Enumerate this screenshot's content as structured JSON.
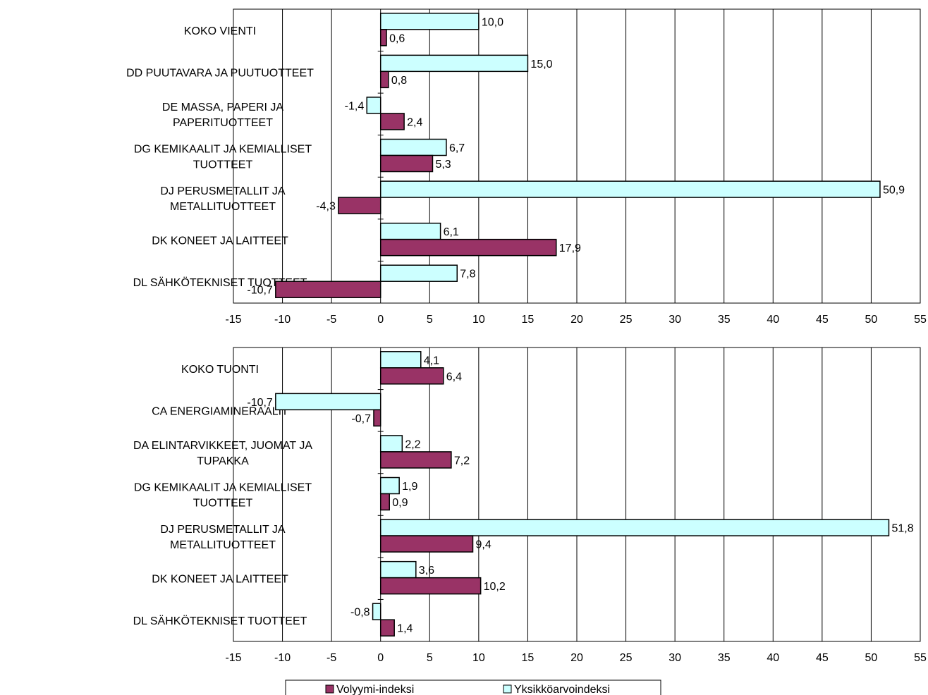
{
  "colors": {
    "volume": "#993366",
    "unit_value": "#ccffff",
    "stroke": "#000000",
    "grid": "#000000",
    "background": "#ffffff"
  },
  "legend": {
    "placement": "bottom",
    "items": [
      {
        "key": "volume",
        "label": "Volyymi-indeksi"
      },
      {
        "key": "unit_value",
        "label": "Yksikköarvoindeksi"
      }
    ]
  },
  "chart_data": [
    {
      "type": "bar",
      "orientation": "horizontal",
      "xlim": [
        -15,
        55
      ],
      "xticks": [
        "-15",
        "-10",
        "-5",
        "0",
        "5",
        "10",
        "15",
        "20",
        "25",
        "30",
        "35",
        "40",
        "45",
        "50",
        "55"
      ],
      "grid": "vertical",
      "categories": [
        [
          "KOKO VIENTI"
        ],
        [
          "DD PUUTAVARA JA PUUTUOTTEET"
        ],
        [
          "DE MASSA, PAPERI JA",
          "PAPERITUOTTEET"
        ],
        [
          "DG KEMIKAALIT JA KEMIALLISET",
          "TUOTTEET"
        ],
        [
          "DJ PERUSMETALLIT JA",
          "METALLITUOTTEET"
        ],
        [
          "DK KONEET JA LAITTEET"
        ],
        [
          "DL SÄHKÖTEKNISET TUOTTEET"
        ]
      ],
      "series": [
        {
          "name": "Yksikköarvoindeksi",
          "key": "unit_value",
          "values": [
            10.0,
            15.0,
            -1.4,
            6.7,
            50.9,
            6.1,
            7.8
          ],
          "labels": [
            "10,0",
            "15,0",
            "-1,4",
            "6,7",
            "50,9",
            "6,1",
            "7,8"
          ]
        },
        {
          "name": "Volyymi-indeksi",
          "key": "volume",
          "values": [
            0.6,
            0.8,
            2.4,
            5.3,
            -4.3,
            17.9,
            -10.7
          ],
          "labels": [
            "0,6",
            "0,8",
            "2,4",
            "5,3",
            "-4,3",
            "17,9",
            "-10,7"
          ]
        }
      ]
    },
    {
      "type": "bar",
      "orientation": "horizontal",
      "xlim": [
        -15,
        55
      ],
      "xticks": [
        "-15",
        "-10",
        "-5",
        "0",
        "5",
        "10",
        "15",
        "20",
        "25",
        "30",
        "35",
        "40",
        "45",
        "50",
        "55"
      ],
      "grid": "vertical",
      "categories": [
        [
          "KOKO TUONTI"
        ],
        [
          "CA ENERGIAMINERAALIT"
        ],
        [
          "DA ELINTARVIKKEET, JUOMAT JA",
          "TUPAKKA"
        ],
        [
          "DG KEMIKAALIT JA KEMIALLISET",
          "TUOTTEET"
        ],
        [
          "DJ PERUSMETALLIT JA",
          "METALLITUOTTEET"
        ],
        [
          "DK KONEET JA LAITTEET"
        ],
        [
          "DL SÄHKÖTEKNISET TUOTTEET"
        ]
      ],
      "series": [
        {
          "name": "Yksikköarvoindeksi",
          "key": "unit_value",
          "values": [
            4.1,
            -10.7,
            2.2,
            1.9,
            51.8,
            3.6,
            -0.8
          ],
          "labels": [
            "4,1",
            "-10,7",
            "2,2",
            "1,9",
            "51,8",
            "3,6",
            "-0,8"
          ]
        },
        {
          "name": "Volyymi-indeksi",
          "key": "volume",
          "values": [
            6.4,
            -0.7,
            7.2,
            0.9,
            9.4,
            10.2,
            1.4
          ],
          "labels": [
            "6,4",
            "-0,7",
            "7,2",
            "0,9",
            "9,4",
            "10,2",
            "1,4"
          ]
        }
      ]
    }
  ]
}
